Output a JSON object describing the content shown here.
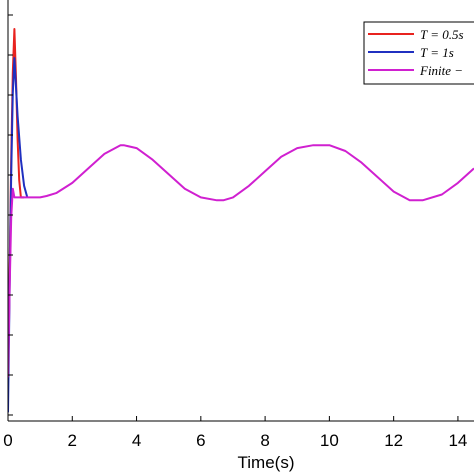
{
  "chart_data": {
    "type": "line",
    "xlabel": "Time(s)",
    "ylabel": "",
    "title": "",
    "xlim": [
      0,
      14.5
    ],
    "ylim": [
      -0.15,
      1.3
    ],
    "xticks": [
      0,
      2,
      4,
      6,
      8,
      10,
      12,
      14
    ],
    "xtick_labels": [
      "0",
      "2",
      "4",
      "6",
      "8",
      "10",
      "12",
      "14"
    ],
    "grid": false,
    "legend_position": "top-right",
    "series": [
      {
        "name": "T = 0.5s",
        "color": "#e8231f",
        "x": [
          0,
          0.05,
          0.1,
          0.15,
          0.2,
          0.25,
          0.3,
          0.35,
          0.4,
          0.5
        ],
        "y": [
          0.0,
          0.35,
          0.75,
          1.05,
          1.2,
          1.03,
          0.82,
          0.68,
          0.62,
          0.62
        ]
      },
      {
        "name": "T = 1s",
        "color": "#2030c0",
        "x": [
          0,
          0.05,
          0.1,
          0.15,
          0.2,
          0.3,
          0.4,
          0.5,
          0.6
        ],
        "y": [
          -0.12,
          0.3,
          0.7,
          0.98,
          1.1,
          0.9,
          0.75,
          0.66,
          0.62
        ]
      },
      {
        "name": "Finite −",
        "color": "#d020d0",
        "x": [
          0,
          0.05,
          0.1,
          0.15,
          0.2,
          0.3,
          0.4,
          0.5,
          0.6,
          0.8,
          1.0,
          1.2,
          1.5,
          2.0,
          2.5,
          3.0,
          3.5,
          3.6,
          4.0,
          4.5,
          5.0,
          5.5,
          6.0,
          6.5,
          6.7,
          7.0,
          7.5,
          8.0,
          8.5,
          9.0,
          9.5,
          9.8,
          10.0,
          10.5,
          11.0,
          11.5,
          12.0,
          12.5,
          12.9,
          13.5,
          14.0,
          14.5
        ],
        "y": [
          0.0,
          0.3,
          0.55,
          0.65,
          0.62,
          0.62,
          0.62,
          0.62,
          0.62,
          0.62,
          0.62,
          0.625,
          0.635,
          0.67,
          0.72,
          0.77,
          0.8,
          0.8,
          0.79,
          0.75,
          0.7,
          0.65,
          0.62,
          0.61,
          0.61,
          0.62,
          0.66,
          0.71,
          0.76,
          0.79,
          0.8,
          0.8,
          0.8,
          0.78,
          0.74,
          0.69,
          0.64,
          0.61,
          0.61,
          0.63,
          0.67,
          0.72
        ]
      }
    ]
  }
}
